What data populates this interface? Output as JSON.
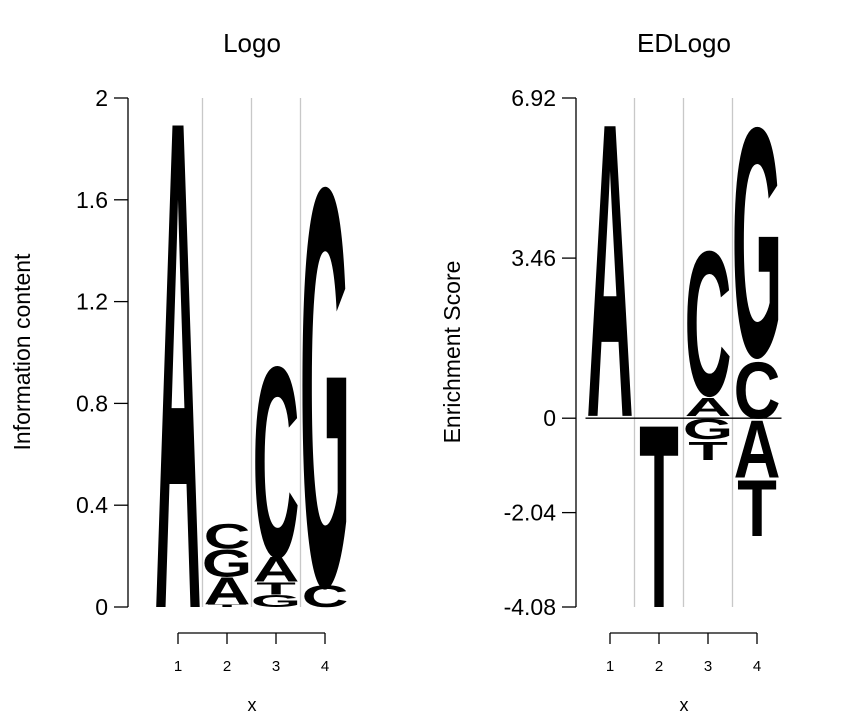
{
  "colors": {
    "A": "#d7191c",
    "C": "#fdae61",
    "G": "#a6d96a",
    "T": "#2c7bb6"
  },
  "chart_data": [
    {
      "type": "sequence-logo",
      "title": "Logo",
      "xlabel": "x",
      "ylabel": "Information content",
      "ylim": [
        0,
        2
      ],
      "yticks": [
        {
          "value": 0,
          "label": "0"
        },
        {
          "value": 0.4,
          "label": "0.4"
        },
        {
          "value": 0.8,
          "label": "0.8"
        },
        {
          "value": 1.2,
          "label": "1.2"
        },
        {
          "value": 1.6,
          "label": "1.6"
        },
        {
          "value": 2,
          "label": "2"
        }
      ],
      "positions": [
        {
          "label": "1",
          "letters": [
            {
              "letter": "A",
              "from": 0,
              "to": 1.98
            }
          ]
        },
        {
          "label": "2",
          "letters": [
            {
              "letter": "T",
              "from": 0,
              "to": 0.01
            },
            {
              "letter": "A",
              "from": 0.01,
              "to": 0.12
            },
            {
              "letter": "G",
              "from": 0.12,
              "to": 0.23
            },
            {
              "letter": "C",
              "from": 0.23,
              "to": 0.33
            }
          ]
        },
        {
          "label": "3",
          "letters": [
            {
              "letter": "G",
              "from": 0,
              "to": 0.05
            },
            {
              "letter": "T",
              "from": 0.05,
              "to": 0.1
            },
            {
              "letter": "A",
              "from": 0.1,
              "to": 0.2
            },
            {
              "letter": "C",
              "from": 0.2,
              "to": 0.97
            }
          ]
        },
        {
          "label": "4",
          "letters": [
            {
              "letter": "C",
              "from": 0,
              "to": 0.09
            },
            {
              "letter": "G",
              "from": 0.09,
              "to": 1.7
            }
          ]
        }
      ]
    },
    {
      "type": "enrichment-logo",
      "title": "EDLogo",
      "xlabel": "x",
      "ylabel": "Enrichment Score",
      "ylim": [
        -4.08,
        6.92
      ],
      "yticks": [
        {
          "value": -4.08,
          "label": "-4.08"
        },
        {
          "value": -2.04,
          "label": "-2.04"
        },
        {
          "value": 0,
          "label": "0"
        },
        {
          "value": 3.46,
          "label": "3.46"
        },
        {
          "value": 6.92,
          "label": "6.92"
        }
      ],
      "positions": [
        {
          "label": "1",
          "letters": [
            {
              "letter": "A",
              "from": 0.05,
              "to": 6.6
            }
          ]
        },
        {
          "label": "2",
          "letters": [
            {
              "letter": "T",
              "from": 0,
              "to": -4.08
            }
          ]
        },
        {
          "label": "3",
          "letters": [
            {
              "letter": "A",
              "from": 0.05,
              "to": 0.45
            },
            {
              "letter": "C",
              "from": 0.5,
              "to": 3.72
            },
            {
              "letter": "G",
              "from": 0,
              "to": -0.45
            },
            {
              "letter": "T",
              "from": -0.5,
              "to": -0.9
            }
          ]
        },
        {
          "label": "4",
          "letters": [
            {
              "letter": "C",
              "from": 0,
              "to": 1.25
            },
            {
              "letter": "G",
              "from": 1.35,
              "to": 6.45
            },
            {
              "letter": "A",
              "from": 0,
              "to": -1.28
            },
            {
              "letter": "T",
              "from": -1.3,
              "to": -2.55
            }
          ]
        }
      ]
    }
  ]
}
